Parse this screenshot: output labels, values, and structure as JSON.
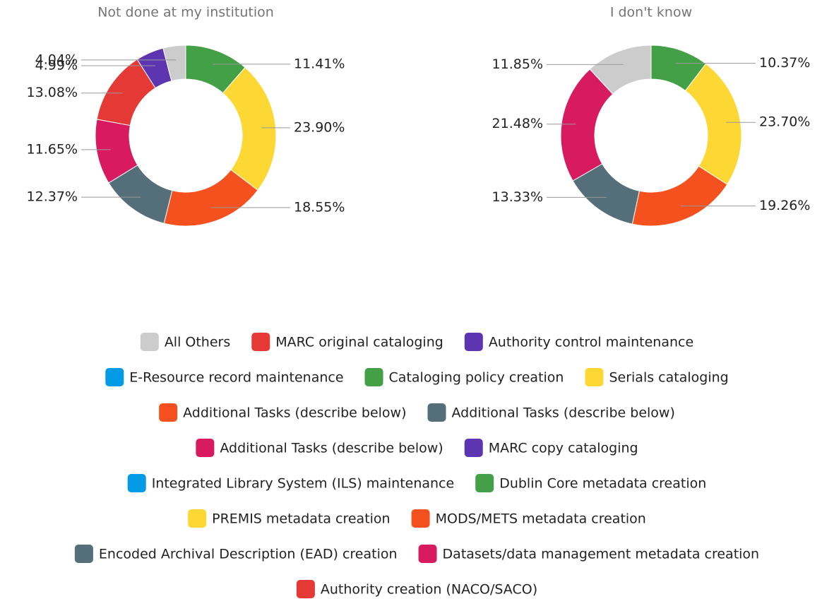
{
  "chart_data": [
    {
      "type": "pie",
      "title": "Not done at my institution",
      "values": [
        11.41,
        23.9,
        18.55,
        12.37,
        11.65,
        13.08,
        4.99,
        4.04
      ],
      "value_labels": [
        "11.41%",
        "23.90%",
        "18.55%",
        "12.37%",
        "11.65%",
        "13.08%",
        "4.99%",
        "4.04%"
      ],
      "colors": [
        "#43a047",
        "#fdd835",
        "#f4511e",
        "#546e7a",
        "#d81b60",
        "#e53935",
        "#5e35b1",
        "#cccccc"
      ]
    },
    {
      "type": "pie",
      "title": "I don't know",
      "values": [
        10.37,
        23.7,
        19.26,
        13.33,
        21.48,
        11.85
      ],
      "value_labels": [
        "10.37%",
        "23.70%",
        "19.26%",
        "13.33%",
        "21.48%",
        "11.85%"
      ],
      "colors": [
        "#43a047",
        "#fdd835",
        "#f4511e",
        "#546e7a",
        "#d81b60",
        "#cccccc"
      ]
    }
  ],
  "legend": [
    {
      "name": "All Others",
      "color": "#cccccc"
    },
    {
      "name": "MARC original cataloging",
      "color": "#e53935"
    },
    {
      "name": "Authority control maintenance",
      "color": "#5e35b1"
    },
    {
      "name": "E-Resource record maintenance",
      "color": "#039be5"
    },
    {
      "name": "Cataloging policy creation",
      "color": "#43a047"
    },
    {
      "name": "Serials cataloging",
      "color": "#fdd835"
    },
    {
      "name": "Additional Tasks (describe below)",
      "color": "#f4511e"
    },
    {
      "name": "Additional Tasks (describe below)",
      "color": "#546e7a"
    },
    {
      "name": "Additional Tasks (describe below)",
      "color": "#d81b60"
    },
    {
      "name": "MARC copy cataloging",
      "color": "#5e35b1"
    },
    {
      "name": "Integrated Library System (ILS) maintenance",
      "color": "#039be5"
    },
    {
      "name": "Dublin Core metadata creation",
      "color": "#43a047"
    },
    {
      "name": "PREMIS metadata creation",
      "color": "#fdd835"
    },
    {
      "name": "MODS/METS metadata creation",
      "color": "#f4511e"
    },
    {
      "name": "Encoded Archival Description (EAD) creation",
      "color": "#546e7a"
    },
    {
      "name": "Datasets/data management metadata creation",
      "color": "#d81b60"
    },
    {
      "name": "Authority creation (NACO/SACO)",
      "color": "#e53935"
    }
  ]
}
